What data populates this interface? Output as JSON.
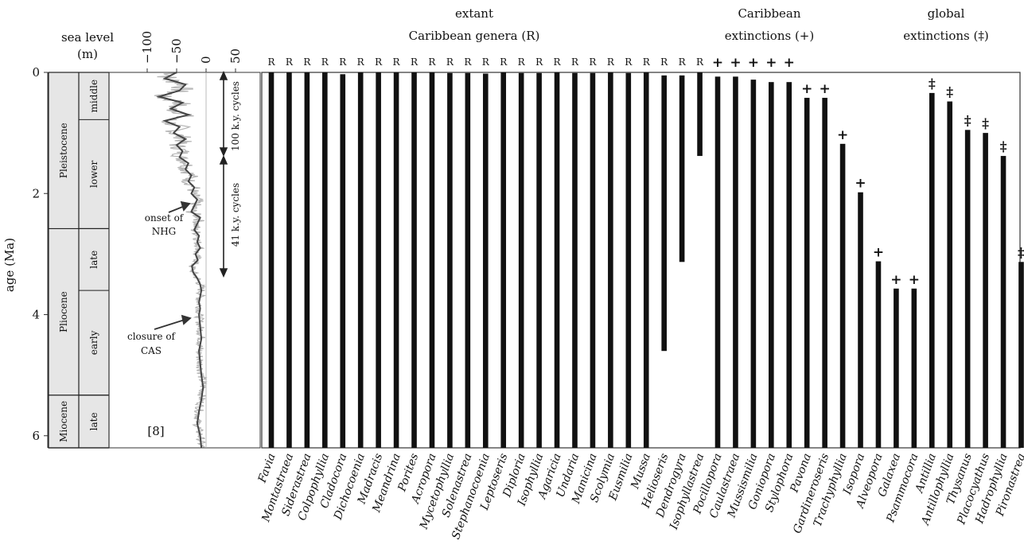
{
  "labels": {
    "sea_level_title": "sea level",
    "sea_level_unit": "(m)",
    "y_axis_label": "age (Ma)",
    "header_extant_1": "extant",
    "header_extant_2": "Caribbean genera (R)",
    "header_carib_1": "Caribbean",
    "header_carib_2": "extinctions (+)",
    "header_global_1": "global",
    "header_global_2": "extinctions (‡)",
    "cycles_100": "100 k.y. cycles",
    "cycles_41": "41 k.y. cycles",
    "onset_1": "onset of",
    "onset_2": "NHG",
    "closure_1": "closure of",
    "closure_2": "CAS",
    "reference": "[8]"
  },
  "epochs": [
    {
      "name": "Pleistocene",
      "subs": [
        "middle",
        "lower"
      ]
    },
    {
      "name": "Pliocene",
      "subs": [
        "late",
        "early"
      ]
    },
    {
      "name": "Miocene",
      "subs": [
        "late"
      ]
    }
  ],
  "age_ticks": [
    "0",
    "2",
    "4",
    "6"
  ],
  "sea_level_ticks": [
    "−100",
    "−50",
    "0",
    "50"
  ],
  "chart_data": {
    "type": "bar",
    "y_axis": {
      "label": "age (Ma)",
      "range": [
        0,
        6.2
      ],
      "ticks": [
        0,
        2,
        4,
        6
      ],
      "inverted": true
    },
    "categories": [
      "Favia",
      "Montastraea",
      "Siderastrea",
      "Colpophyllia",
      "Cladocora",
      "Dichocoenia",
      "Madracis",
      "Meandrina",
      "Porites",
      "Acropora",
      "Mycetophyllia",
      "Solenastrea",
      "Stephanocoenia",
      "Leptoseris",
      "Diploria",
      "Isophyllia",
      "Agaricia",
      "Undaria",
      "Manicina",
      "Scolymia",
      "Eusmilia",
      "Mussa",
      "Helioseris",
      "Dendrogyra",
      "Isophyllastrea",
      "Pocillopora",
      "Caulastraea",
      "Mussismilia",
      "Goniopora",
      "Stylophora",
      "Pavona",
      "Gardineroseris",
      "Trachyphyllia",
      "Isopora",
      "Alveopora",
      "Galaxea",
      "Psammocora",
      "Antillia",
      "Antillophyllia",
      "Thysanus",
      "Placocyathus",
      "Hadrophyllia",
      "Pironastrea"
    ],
    "range_top": [
      0,
      0,
      0,
      0,
      0.03,
      0,
      0,
      0,
      0,
      0,
      0.01,
      0.01,
      0.02,
      0,
      0.01,
      0.01,
      0,
      0.01,
      0.01,
      0,
      0.01,
      0,
      0.05,
      0.05,
      0,
      0.07,
      0.07,
      0.12,
      0.16,
      0.16,
      0.42,
      0.42,
      1.18,
      1.98,
      3.12,
      3.57,
      3.57,
      0.34,
      0.48,
      0.95,
      1.0,
      1.38,
      3.13
    ],
    "range_base": [
      6.2,
      6.2,
      6.2,
      6.2,
      6.2,
      6.2,
      6.2,
      6.2,
      6.2,
      6.2,
      6.2,
      6.2,
      6.2,
      6.2,
      6.2,
      6.2,
      6.2,
      6.2,
      6.2,
      6.2,
      6.2,
      6.2,
      4.6,
      3.13,
      1.38,
      6.2,
      6.2,
      6.2,
      6.2,
      6.2,
      6.2,
      6.2,
      6.2,
      6.2,
      6.2,
      6.2,
      6.2,
      6.2,
      6.2,
      6.2,
      6.2,
      6.2,
      6.2
    ],
    "status": [
      "R",
      "R",
      "R",
      "R",
      "R",
      "R",
      "R",
      "R",
      "R",
      "R",
      "R",
      "R",
      "R",
      "R",
      "R",
      "R",
      "R",
      "R",
      "R",
      "R",
      "R",
      "R",
      "R",
      "R",
      "R",
      "+",
      "+",
      "+",
      "+",
      "+",
      "+",
      "+",
      "+",
      "+",
      "+",
      "+",
      "+",
      "‡",
      "‡",
      "‡",
      "‡",
      "‡",
      "‡"
    ],
    "legend": {
      "R": "extant Caribbean genera (R)",
      "+": "Caribbean extinctions (+)",
      "‡": "global extinctions (‡)"
    },
    "sea_level": {
      "xlabel": "sea level (m)",
      "xticks": [
        -100,
        -50,
        0,
        50
      ],
      "age": [
        0,
        0.1,
        0.2,
        0.3,
        0.4,
        0.5,
        0.6,
        0.7,
        0.8,
        0.9,
        1.0,
        1.1,
        1.2,
        1.3,
        1.4,
        1.5,
        1.6,
        1.7,
        1.8,
        1.9,
        2.0,
        2.1,
        2.2,
        2.3,
        2.4,
        2.5,
        2.6,
        2.7,
        2.8,
        2.9,
        3.0,
        3.1,
        3.2,
        3.3,
        3.4,
        3.5,
        3.6,
        3.7,
        3.8,
        3.9,
        4.0,
        4.2,
        4.4,
        4.6,
        4.8,
        5.0,
        5.2,
        5.4,
        5.6,
        5.8,
        6.0,
        6.2
      ],
      "level": [
        -50,
        -70,
        -35,
        -45,
        -80,
        -40,
        -60,
        -30,
        -70,
        -45,
        -55,
        -35,
        -50,
        -40,
        -45,
        -30,
        -35,
        -25,
        -30,
        -20,
        -25,
        -15,
        -20,
        -25,
        -10,
        -15,
        -20,
        -12,
        -15,
        -10,
        -18,
        -14,
        -24,
        -22,
        -15,
        -10,
        -8,
        -10,
        -12,
        -10,
        -12,
        -10,
        -8,
        -12,
        -10,
        -8,
        -5,
        -8,
        -12,
        -15,
        -10,
        -8
      ]
    },
    "annotations": [
      "onset of NHG",
      "closure of CAS",
      "100 k.y. cycles",
      "41 k.y. cycles",
      "[8]"
    ]
  }
}
